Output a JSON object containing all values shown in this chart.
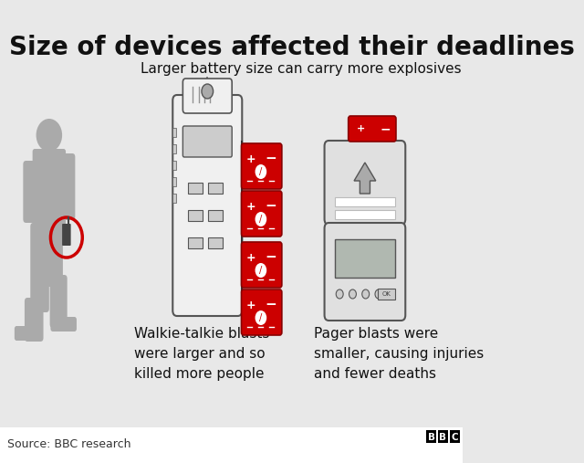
{
  "title": "Size of devices affected their deadlines",
  "subtitle": "Larger battery size can carry more explosives",
  "walkie_caption": "Walkie-talkie blasts\nwere larger and so\nkilled more people",
  "pager_caption": "Pager blasts were\nsmaller, causing injuries\nand fewer deaths",
  "source": "Source: BBC research",
  "bg_color": "#e8e8e8",
  "title_color": "#111111",
  "text_color": "#111111",
  "red_color": "#cc0000",
  "device_outline": "#555555",
  "human_color": "#aaaaaa",
  "title_fontsize": 20,
  "subtitle_fontsize": 11,
  "caption_fontsize": 11,
  "source_fontsize": 9
}
